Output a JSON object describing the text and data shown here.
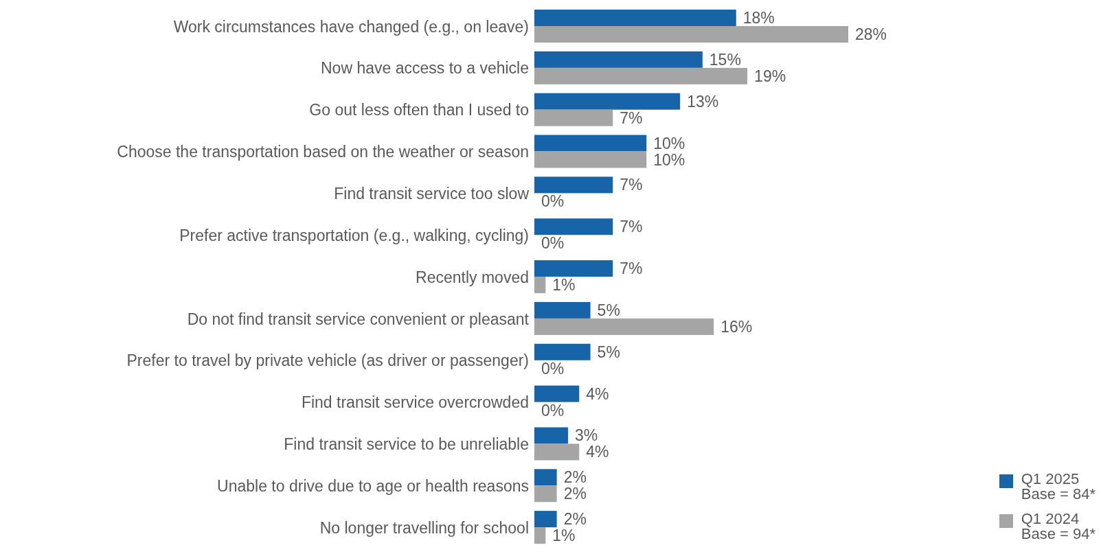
{
  "chart_data": {
    "type": "bar",
    "orientation": "horizontal",
    "categories": [
      "Work circumstances have changed (e.g., on leave)",
      "Now have access to a vehicle",
      "Go out less often than I used to",
      "Choose the transportation based on the weather or season",
      "Find transit service too slow",
      "Prefer active transportation (e.g., walking, cycling)",
      "Recently moved",
      "Do not find transit service convenient or pleasant",
      "Prefer to travel by private vehicle (as driver or passenger)",
      "Find transit service overcrowded",
      "Find transit service to be unreliable",
      "Unable to drive due to age or health reasons",
      "No longer travelling for school"
    ],
    "series": [
      {
        "name": "Q1 2025\nBase = 84*",
        "color": "#1764a8",
        "values": [
          18,
          15,
          13,
          10,
          7,
          7,
          7,
          5,
          5,
          4,
          3,
          2,
          2
        ],
        "value_labels": [
          "18%",
          "15%",
          "13%",
          "10%",
          "7%",
          "7%",
          "7%",
          "5%",
          "5%",
          "4%",
          "3%",
          "2%",
          "2%"
        ]
      },
      {
        "name": "Q1 2024\nBase = 94*",
        "color": "#a5a5a5",
        "values": [
          28,
          19,
          7,
          10,
          0,
          0,
          1,
          16,
          0,
          0,
          4,
          2,
          1
        ],
        "value_labels": [
          "28%",
          "19%",
          "7%",
          "10%",
          "0%",
          "0%",
          "1%",
          "16%",
          "0%",
          "0%",
          "4%",
          "2%",
          "1%"
        ]
      }
    ],
    "legend": "bottom right"
  }
}
